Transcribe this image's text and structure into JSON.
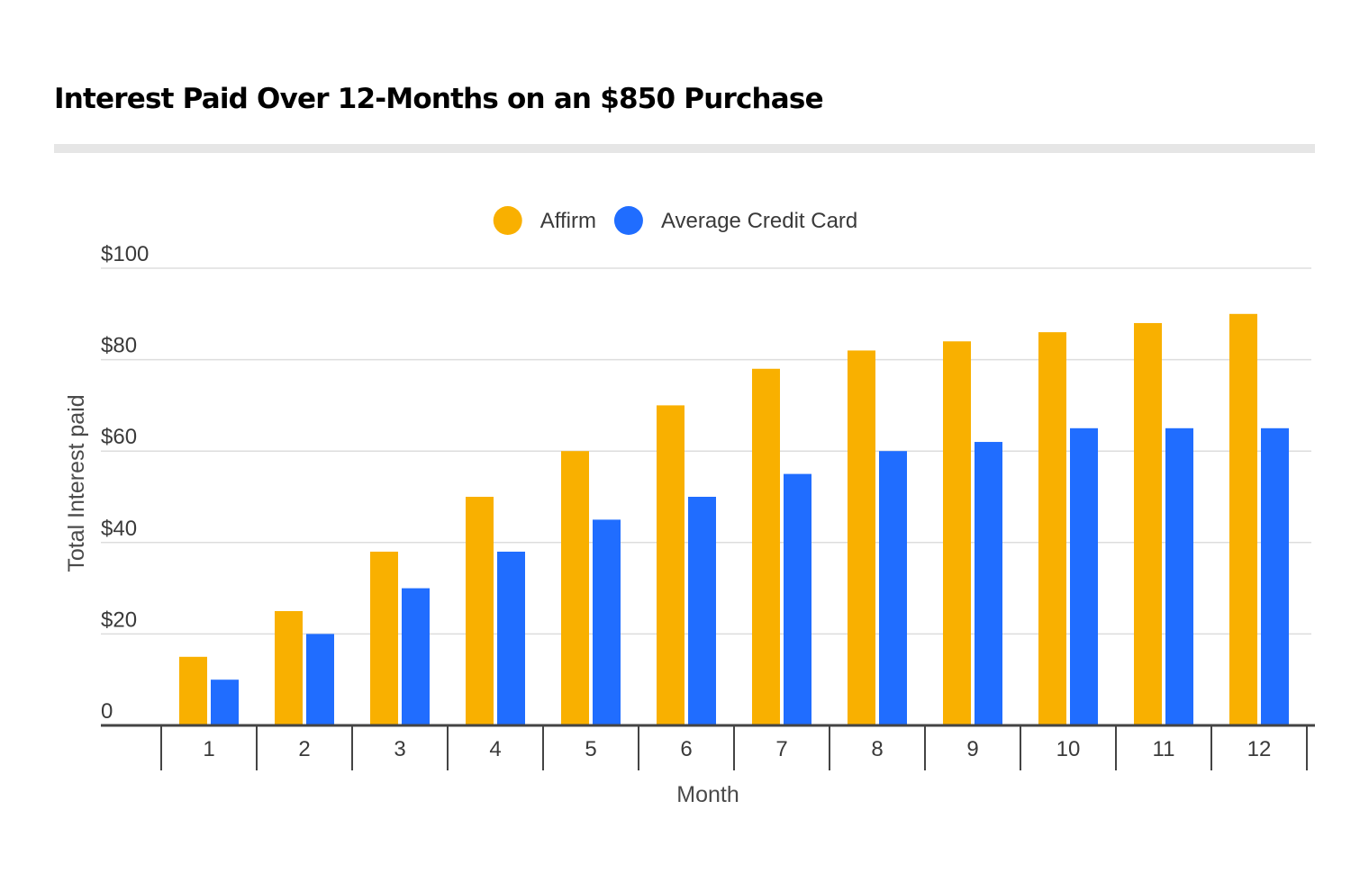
{
  "chart_data": {
    "type": "bar",
    "title": "Interest Paid Over 12-Months on an $850 Purchase",
    "xlabel": "Month",
    "ylabel": "Total Interest paid",
    "categories": [
      "1",
      "2",
      "3",
      "4",
      "5",
      "6",
      "7",
      "8",
      "9",
      "10",
      "11",
      "12"
    ],
    "series": [
      {
        "name": "Affirm",
        "color": "#F9B000",
        "values": [
          15,
          25,
          38,
          50,
          60,
          70,
          78,
          82,
          84,
          86,
          88,
          90
        ]
      },
      {
        "name": "Average Credit Card",
        "color": "#206DFF",
        "values": [
          10,
          20,
          30,
          38,
          45,
          50,
          55,
          60,
          62,
          65,
          65,
          65
        ]
      }
    ],
    "ylim": [
      0,
      100
    ],
    "yticks": [
      0,
      20,
      40,
      60,
      80,
      100
    ],
    "ytick_labels": [
      "0",
      "$20",
      "$40",
      "$60",
      "$80",
      "$100"
    ],
    "grid": true,
    "legend": "top-center"
  }
}
